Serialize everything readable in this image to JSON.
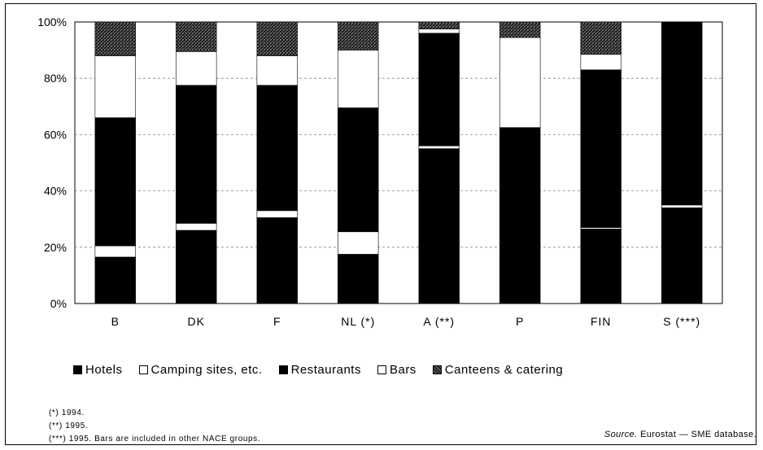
{
  "chart_data": {
    "type": "bar",
    "stacked": true,
    "categories": [
      "B",
      "DK",
      "F",
      "NL (*)",
      "A (**)",
      "P",
      "FIN",
      "S (***)"
    ],
    "series": [
      {
        "name": "Hotels",
        "color": "#000000",
        "values": [
          16.5,
          26,
          30.5,
          17.5,
          55,
          0,
          26.5,
          34
        ]
      },
      {
        "name": "Camping sites, etc.",
        "color": "#ffffff",
        "values": [
          4,
          2.5,
          2.5,
          8,
          1,
          0,
          0.5,
          1
        ]
      },
      {
        "name": "Restaurants",
        "color": "#000000",
        "values": [
          45.5,
          49,
          44.5,
          44,
          40,
          62.5,
          56,
          65
        ]
      },
      {
        "name": "Bars",
        "color": "#ffffff",
        "values": [
          22,
          12,
          10.5,
          20.5,
          1.5,
          32,
          5.5,
          0
        ]
      },
      {
        "name": "Canteens & catering",
        "color": "#3a3a3a",
        "values": [
          12,
          10.5,
          12,
          10,
          2.5,
          5.5,
          11.5,
          0
        ]
      }
    ],
    "yticks": [
      "0%",
      "20%",
      "40%",
      "60%",
      "80%",
      "100%"
    ],
    "ylim": [
      0,
      100
    ],
    "grid": true,
    "legend_position": "bottom"
  },
  "legend": [
    {
      "label": "Hotels",
      "color": "#000000",
      "icon": "filled-square"
    },
    {
      "label": "Camping sites, etc.",
      "color": "#ffffff",
      "icon": "empty-square"
    },
    {
      "label": "Restaurants",
      "color": "#000000",
      "icon": "filled-square"
    },
    {
      "label": "Bars",
      "color": "#ffffff",
      "icon": "empty-square"
    },
    {
      "label": "Canteens & catering",
      "color": "#3a3a3a",
      "icon": "hatched-square"
    }
  ],
  "notes": [
    "(*)  1994.",
    "(**)  1995.",
    "(***)  1995. Bars are included in other NACE groups."
  ],
  "source": {
    "prefix": "Source.",
    "text": "Eurostat — SME database."
  }
}
